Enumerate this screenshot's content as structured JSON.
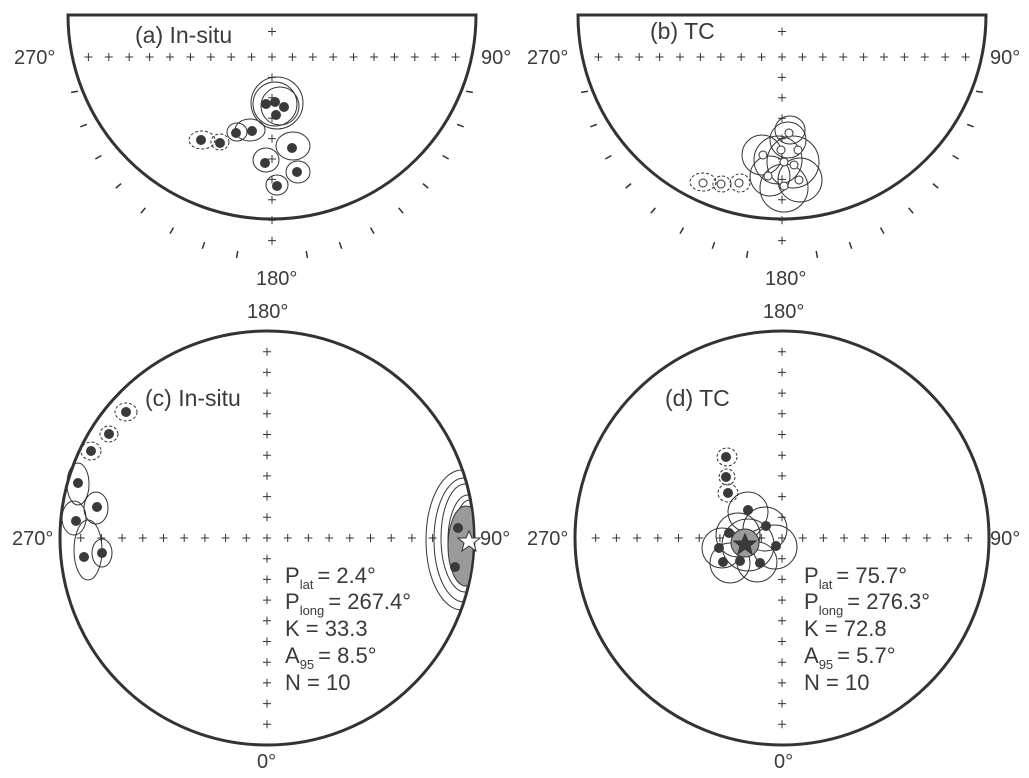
{
  "panels": [
    {
      "id": "a",
      "title": "(a) In-situ",
      "labels": {
        "north": "",
        "south": "180°",
        "west": "270°",
        "east": "90°"
      },
      "stats": null
    },
    {
      "id": "b",
      "title": "(b) TC",
      "labels": {
        "north": "",
        "south": "180°",
        "west": "270°",
        "east": "90°"
      },
      "stats": null
    },
    {
      "id": "c",
      "title": "(c) In-situ",
      "labels": {
        "north": "180°",
        "south": "0°",
        "west": "270°",
        "east": "90°"
      },
      "stats": {
        "plat_label": "P",
        "plat_sub": "lat",
        "plat_value": "= 2.4°",
        "plong_label": "P",
        "plong_sub": "long",
        "plong_value": "= 267.4°",
        "k": "K = 33.3",
        "a95_label": "A",
        "a95_sub": "95",
        "a95_value": "= 8.5°",
        "n": "N = 10"
      }
    },
    {
      "id": "d",
      "title": "(d) TC",
      "labels": {
        "north": "180°",
        "south": "0°",
        "west": "270°",
        "east": "90°"
      },
      "stats": {
        "plat_label": "P",
        "plat_sub": "lat",
        "plat_value": "= 75.7°",
        "plong_label": "P",
        "plong_sub": "long",
        "plong_value": "= 276.3°",
        "k": "K = 72.8",
        "a95_label": "A",
        "a95_sub": "95",
        "a95_value": "= 5.7°",
        "n": "N = 10"
      }
    }
  ],
  "colors": {
    "outline": "#333333",
    "point_fill": "#3a3a3a",
    "open_point_fill": "#ffffff",
    "mean_fill": "#9a9a9a"
  },
  "mean_marker": "star-icon"
}
